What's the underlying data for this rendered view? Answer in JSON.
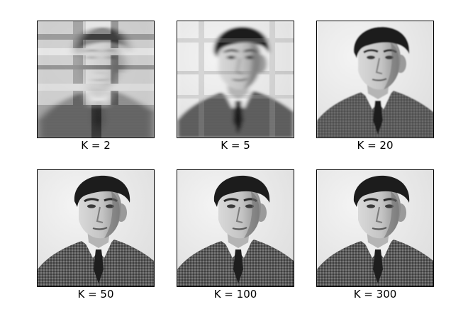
{
  "figure": {
    "panels": [
      {
        "label": "K = 2"
      },
      {
        "label": "K = 5"
      },
      {
        "label": "K = 20"
      },
      {
        "label": "K = 50"
      },
      {
        "label": "K = 100"
      },
      {
        "label": "K = 300"
      }
    ]
  }
}
